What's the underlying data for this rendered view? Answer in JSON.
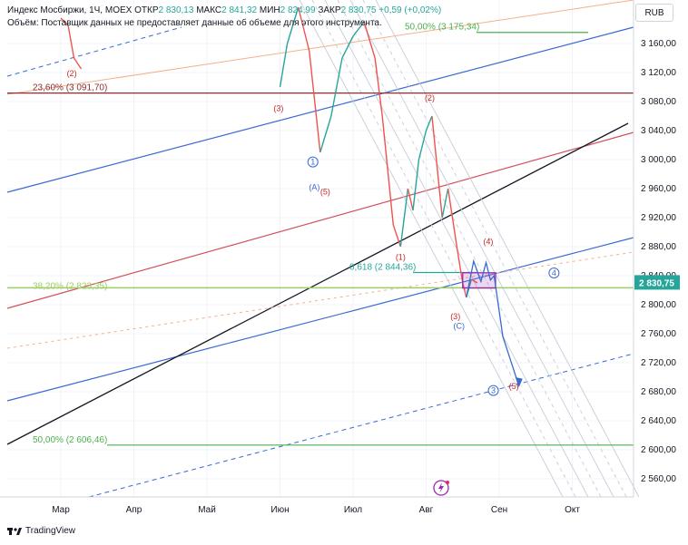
{
  "header": {
    "line1_prefix": "Индекс Мосбиржи, 1Ч, MOEX",
    "open_label": "ОТКР",
    "open_value": "2 830,13",
    "high_label": "МАКС",
    "high_value": "2 841,32",
    "low_label": "МИН",
    "low_value": "2 824,99",
    "close_label": "ЗАКР",
    "close_value": "2 830,75",
    "change": "+0,59 (+0,02%)",
    "line2": "Объём: Поставщик данных не предоставляет данные об объеме для этого инструмента."
  },
  "currency_button": "RUB",
  "brand": "TradingView",
  "colors": {
    "up": "#26a69a",
    "down": "#ef5350",
    "fib_red": "#8d2e2e",
    "fib_green": "#4caf50",
    "blue_line": "#3a6ad1",
    "red_line": "#d3515c",
    "price_tag": "#26a69a",
    "wave_purple": "#9c27b0"
  },
  "chart_data": {
    "type": "line",
    "x_ticks": [
      "Мар",
      "Апр",
      "Май",
      "Июн",
      "Июл",
      "Авг",
      "Сен",
      "Окт"
    ],
    "y_ticks": [
      "3 160,00",
      "3 120,00",
      "3 080,00",
      "3 040,00",
      "3 000,00",
      "2 960,00",
      "2 920,00",
      "2 880,00",
      "2 840,00",
      "2 800,00",
      "2 760,00",
      "2 720,00",
      "2 680,00",
      "2 640,00",
      "2 600,00",
      "2 560,00"
    ],
    "ylim": [
      2530,
      3210
    ],
    "last_price": "2 830,75",
    "price_series": [
      {
        "x": 0.0,
        "y": 3195
      },
      {
        "x": 0.1,
        "y": 3185
      },
      {
        "x": 0.18,
        "y": 3140
      },
      {
        "x": 0.28,
        "y": 3125
      },
      {
        "x": 3.0,
        "y": 3100
      },
      {
        "x": 3.1,
        "y": 3160
      },
      {
        "x": 3.25,
        "y": 3210
      },
      {
        "x": 3.4,
        "y": 3150
      },
      {
        "x": 3.55,
        "y": 3010
      },
      {
        "x": 3.7,
        "y": 3060
      },
      {
        "x": 3.85,
        "y": 3140
      },
      {
        "x": 4.0,
        "y": 3170
      },
      {
        "x": 4.15,
        "y": 3190
      },
      {
        "x": 4.3,
        "y": 3140
      },
      {
        "x": 4.4,
        "y": 3060
      },
      {
        "x": 4.55,
        "y": 2910
      },
      {
        "x": 4.65,
        "y": 2880
      },
      {
        "x": 4.75,
        "y": 2960
      },
      {
        "x": 4.82,
        "y": 2930
      },
      {
        "x": 4.9,
        "y": 3000
      },
      {
        "x": 5.0,
        "y": 3040
      },
      {
        "x": 5.08,
        "y": 3060
      },
      {
        "x": 5.15,
        "y": 2990
      },
      {
        "x": 5.22,
        "y": 2920
      },
      {
        "x": 5.3,
        "y": 2960
      },
      {
        "x": 5.36,
        "y": 2920
      },
      {
        "x": 5.42,
        "y": 2880
      },
      {
        "x": 5.5,
        "y": 2830
      },
      {
        "x": 5.55,
        "y": 2810
      },
      {
        "x": 5.62,
        "y": 2835
      },
      {
        "x": 5.7,
        "y": 2830
      }
    ],
    "fib_levels": [
      {
        "label": "23,60% (3 091,70)",
        "value": 3091.7,
        "color": "#8d2e2e"
      },
      {
        "label": "38,20% (2 823,35)",
        "value": 2823.35,
        "color": "#9ccc65"
      },
      {
        "label": "50,00% (2 606,46)",
        "value": 2606.46,
        "color": "#4caf50"
      },
      {
        "label": "50,00% (3 175,34)",
        "value": 3175.34,
        "color": "#4caf50"
      },
      {
        "label": "0,618 (2 844,36)",
        "value": 2844.36,
        "color": "#26a69a"
      }
    ],
    "wave_labels": [
      {
        "text": "(2)",
        "x": 0.15,
        "y": 3115,
        "color": "#c62828"
      },
      {
        "text": "(3)",
        "x": 2.98,
        "y": 3067,
        "color": "#c62828"
      },
      {
        "text": "1",
        "x": 3.45,
        "y": 2993,
        "color": "#3a6ad1",
        "circle": true
      },
      {
        "text": "(A)",
        "x": 3.47,
        "y": 2958,
        "color": "#3a6ad1"
      },
      {
        "text": "(5)",
        "x": 3.62,
        "y": 2952,
        "color": "#c62828"
      },
      {
        "text": "(2)",
        "x": 5.05,
        "y": 3081,
        "color": "#c62828"
      },
      {
        "text": "(4)",
        "x": 5.85,
        "y": 2883,
        "color": "#c62828"
      },
      {
        "text": "(1)",
        "x": 4.65,
        "y": 2862,
        "color": "#c62828"
      },
      {
        "text": "4",
        "x": 6.75,
        "y": 2840,
        "color": "#3a6ad1",
        "circle": true
      },
      {
        "text": "(3)",
        "x": 5.4,
        "y": 2780,
        "color": "#c62828"
      },
      {
        "text": "(C)",
        "x": 5.45,
        "y": 2767,
        "color": "#3a6ad1"
      },
      {
        "text": "3",
        "x": 5.92,
        "y": 2678,
        "color": "#3a6ad1",
        "circle": true
      },
      {
        "text": "(5)",
        "x": 6.2,
        "y": 2684,
        "color": "#c62828"
      }
    ]
  }
}
